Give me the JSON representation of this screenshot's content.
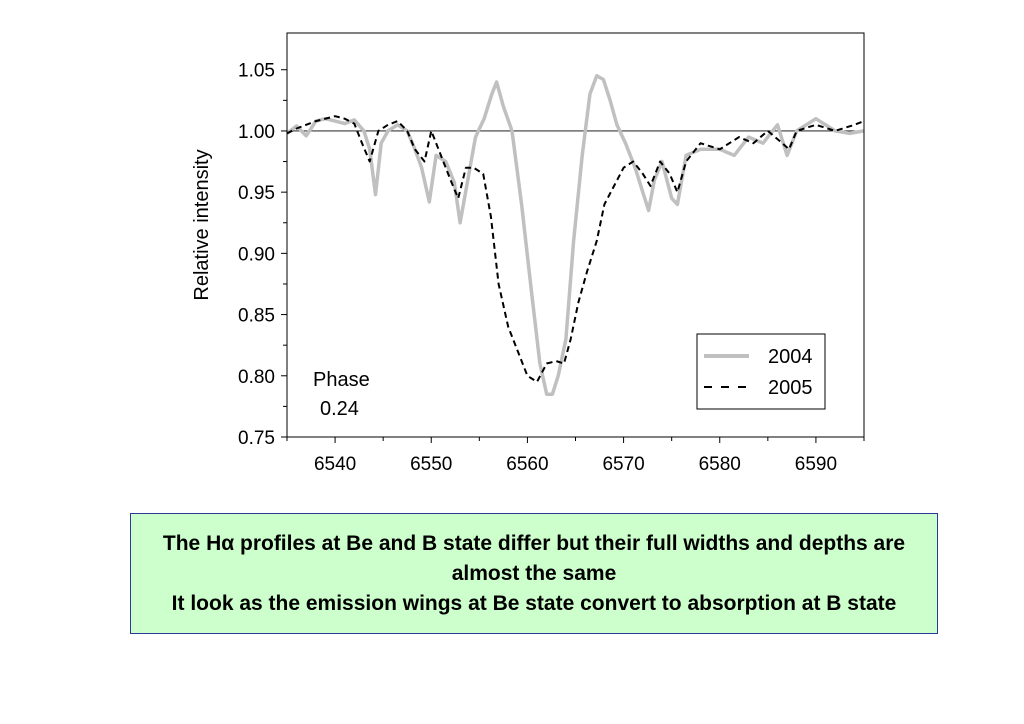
{
  "chart_data": {
    "type": "line",
    "xlabel": "",
    "ylabel": "Relative intensity",
    "xlim": [
      6535,
      6595
    ],
    "ylim": [
      0.75,
      1.08
    ],
    "x_ticks": [
      6540,
      6550,
      6560,
      6570,
      6580,
      6590
    ],
    "y_ticks": [
      0.75,
      0.8,
      0.85,
      0.9,
      0.95,
      1.0,
      1.05
    ],
    "x_tick_labels": [
      "6540",
      "6550",
      "6560",
      "6570",
      "6580",
      "6590"
    ],
    "y_tick_labels": [
      "0.75",
      "0.80",
      "0.85",
      "0.90",
      "0.95",
      "1.00",
      "1.05"
    ],
    "reference_line": 1.0,
    "annotation": {
      "line1": "Phase",
      "line2": "0.24"
    },
    "legend_position": "bottom-right",
    "series": [
      {
        "name": "2004",
        "color": "#c0c0c0",
        "style": "solid",
        "x": [
          6535,
          6536,
          6537,
          6538,
          6539,
          6540,
          6541,
          6542,
          6543,
          6543.6,
          6544.2,
          6544.8,
          6545.5,
          6546.5,
          6547.5,
          6548.3,
          6549,
          6549.8,
          6550.5,
          6551.5,
          6552.4,
          6553,
          6553.8,
          6554.6,
          6555.5,
          6556.3,
          6556.8,
          6557.5,
          6558.4,
          6559.4,
          6560.4,
          6561.3,
          6562,
          6562.6,
          6563.2,
          6564,
          6564.8,
          6565.7,
          6566.5,
          6567.2,
          6567.9,
          6568.6,
          6569.3,
          6570.2,
          6571.2,
          6572,
          6572.6,
          6573.2,
          6574,
          6575,
          6575.6,
          6576.5,
          6578,
          6580,
          6581.5,
          6583,
          6584.5,
          6586,
          6587,
          6588,
          6590,
          6592,
          6593.5,
          6595
        ],
        "y": [
          0.998,
          1.004,
          0.996,
          1.008,
          1.01,
          1.008,
          1.006,
          1.009,
          1.0,
          0.985,
          0.948,
          0.99,
          1.0,
          1.005,
          1.0,
          0.985,
          0.97,
          0.942,
          0.98,
          0.975,
          0.958,
          0.925,
          0.96,
          0.995,
          1.01,
          1.03,
          1.04,
          1.02,
          1.0,
          0.94,
          0.87,
          0.81,
          0.785,
          0.785,
          0.8,
          0.83,
          0.91,
          0.98,
          1.03,
          1.045,
          1.042,
          1.025,
          1.005,
          0.99,
          0.97,
          0.95,
          0.935,
          0.96,
          0.975,
          0.945,
          0.94,
          0.98,
          0.985,
          0.985,
          0.98,
          0.995,
          0.99,
          1.005,
          0.98,
          1.0,
          1.01,
          1.0,
          0.998,
          1.0
        ]
      },
      {
        "name": "2005",
        "color": "#000000",
        "style": "dashed",
        "x": [
          6535,
          6536,
          6537,
          6538,
          6540,
          6541,
          6542,
          6542.8,
          6543.6,
          6544.5,
          6545.5,
          6546.5,
          6547.5,
          6548.3,
          6549.3,
          6550,
          6551,
          6552,
          6552.8,
          6553.6,
          6554.4,
          6555.4,
          6556.2,
          6557,
          6558,
          6559,
          6560,
          6561,
          6562,
          6563,
          6563.8,
          6564.5,
          6565.3,
          6566.2,
          6567.2,
          6568,
          6569,
          6570,
          6571,
          6572,
          6572.8,
          6573.8,
          6574.8,
          6575.6,
          6576.5,
          6578,
          6580,
          6582,
          6583.5,
          6585,
          6586.5,
          6587.2,
          6588,
          6590,
          6592,
          6594,
          6595
        ],
        "y": [
          0.998,
          1.002,
          1.005,
          1.008,
          1.012,
          1.01,
          1.006,
          0.99,
          0.975,
          1.0,
          1.005,
          1.008,
          1.0,
          0.985,
          0.975,
          1.0,
          0.98,
          0.96,
          0.945,
          0.97,
          0.97,
          0.965,
          0.93,
          0.875,
          0.84,
          0.82,
          0.8,
          0.795,
          0.81,
          0.812,
          0.81,
          0.83,
          0.86,
          0.885,
          0.91,
          0.94,
          0.955,
          0.97,
          0.975,
          0.965,
          0.955,
          0.975,
          0.965,
          0.95,
          0.975,
          0.99,
          0.985,
          0.995,
          0.99,
          1.0,
          0.99,
          0.985,
          1.0,
          1.005,
          1.0,
          1.005,
          1.008
        ]
      }
    ]
  },
  "caption": {
    "line1": "The Hα profiles at Be and B state differ but their full widths and depths are almost the same",
    "line2": "It look as the emission wings at Be state convert to absorption at B state"
  }
}
